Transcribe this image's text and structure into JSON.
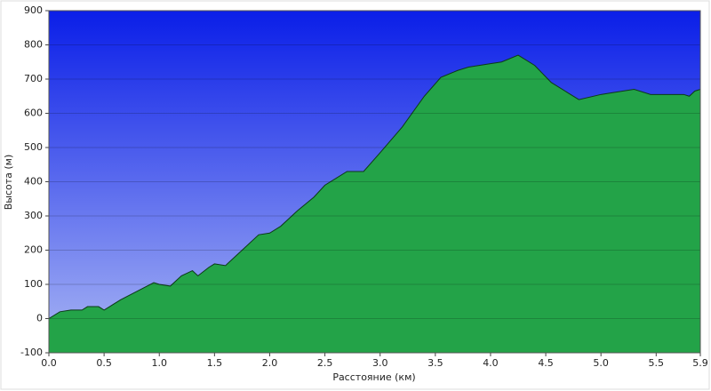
{
  "chart_data": {
    "type": "area",
    "xlabel": "Расстояние  (км)",
    "ylabel": "Высота (м)",
    "x": [
      0,
      0.1,
      0.2,
      0.3,
      0.35,
      0.45,
      0.5,
      0.55,
      0.65,
      0.8,
      0.95,
      1.0,
      1.1,
      1.2,
      1.3,
      1.35,
      1.45,
      1.5,
      1.6,
      1.75,
      1.9,
      2.0,
      2.1,
      2.25,
      2.4,
      2.5,
      2.6,
      2.7,
      2.85,
      3.0,
      3.2,
      3.4,
      3.55,
      3.7,
      3.8,
      4.0,
      4.1,
      4.25,
      4.4,
      4.55,
      4.7,
      4.8,
      5.0,
      5.1,
      5.3,
      5.45,
      5.6,
      5.75,
      5.8,
      5.85,
      5.9
    ],
    "values": [
      0,
      20,
      25,
      25,
      35,
      35,
      25,
      35,
      55,
      80,
      105,
      100,
      95,
      125,
      140,
      125,
      150,
      160,
      155,
      200,
      245,
      250,
      270,
      315,
      355,
      390,
      410,
      430,
      430,
      485,
      560,
      650,
      705,
      725,
      735,
      745,
      750,
      770,
      740,
      690,
      660,
      640,
      655,
      660,
      670,
      655,
      655,
      655,
      650,
      665,
      670
    ],
    "color": "#23a348",
    "xlim": [
      0,
      5.9
    ],
    "ylim": [
      -100,
      900
    ],
    "xticks": [
      {
        "value": 0,
        "label": "0.0"
      },
      0.5,
      {
        "value": 1,
        "label": "1.0"
      },
      1.5,
      {
        "value": 2,
        "label": "2.0"
      },
      2.5,
      {
        "value": 3,
        "label": "3.0"
      },
      3.5,
      {
        "value": 4,
        "label": "4.0"
      },
      4.5,
      {
        "value": 5,
        "label": "5.0"
      },
      5.5,
      5.9
    ],
    "yticks": [
      -100,
      0,
      100,
      200,
      300,
      400,
      500,
      600,
      700,
      800,
      900
    ],
    "grid": true
  }
}
